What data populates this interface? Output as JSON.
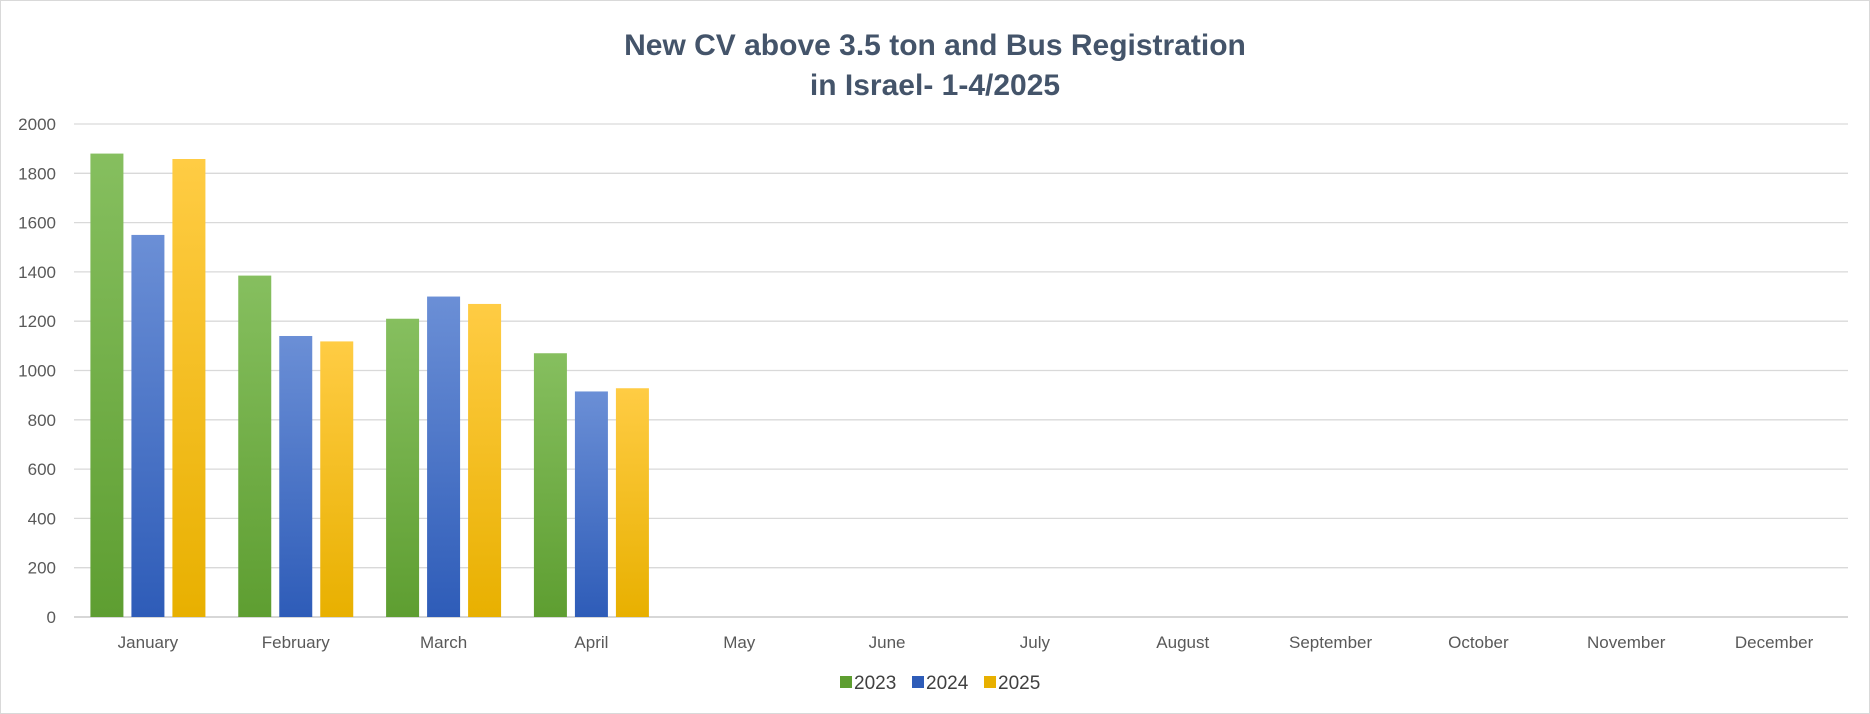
{
  "chart_data": {
    "type": "bar",
    "title": "New CV above 3.5 ton and Bus Registration",
    "subtitle": "in Israel- 1-4/2025",
    "xlabel": "",
    "ylabel": "",
    "ylim": [
      0,
      2000
    ],
    "yticks": [
      "0",
      "200",
      "400",
      "600",
      "800",
      "1000",
      "1200",
      "1400",
      "1600",
      "1800",
      "2000"
    ],
    "categories": [
      "January",
      "February",
      "March",
      "April",
      "May",
      "June",
      "July",
      "August",
      "September",
      "October",
      "November",
      "December"
    ],
    "series": [
      {
        "name": "2023",
        "values": [
          1880,
          1385,
          1210,
          1070,
          null,
          null,
          null,
          null,
          null,
          null,
          null,
          null
        ]
      },
      {
        "name": "2024",
        "values": [
          1550,
          1140,
          1300,
          915,
          null,
          null,
          null,
          null,
          null,
          null,
          null,
          null
        ]
      },
      {
        "name": "2025",
        "values": [
          1858,
          1118,
          1270,
          928,
          null,
          null,
          null,
          null,
          null,
          null,
          null,
          null
        ]
      }
    ],
    "grid": true,
    "legend": "bottom-center",
    "colors": {
      "2023": [
        "#86bf5f",
        "#5e9e31"
      ],
      "2024": [
        "#6b8fd6",
        "#2e5cb8"
      ],
      "2025": [
        "#ffcc44",
        "#e8b000"
      ],
      "gridline": "#d9d9d9",
      "axis": "#bfbfbf"
    }
  }
}
